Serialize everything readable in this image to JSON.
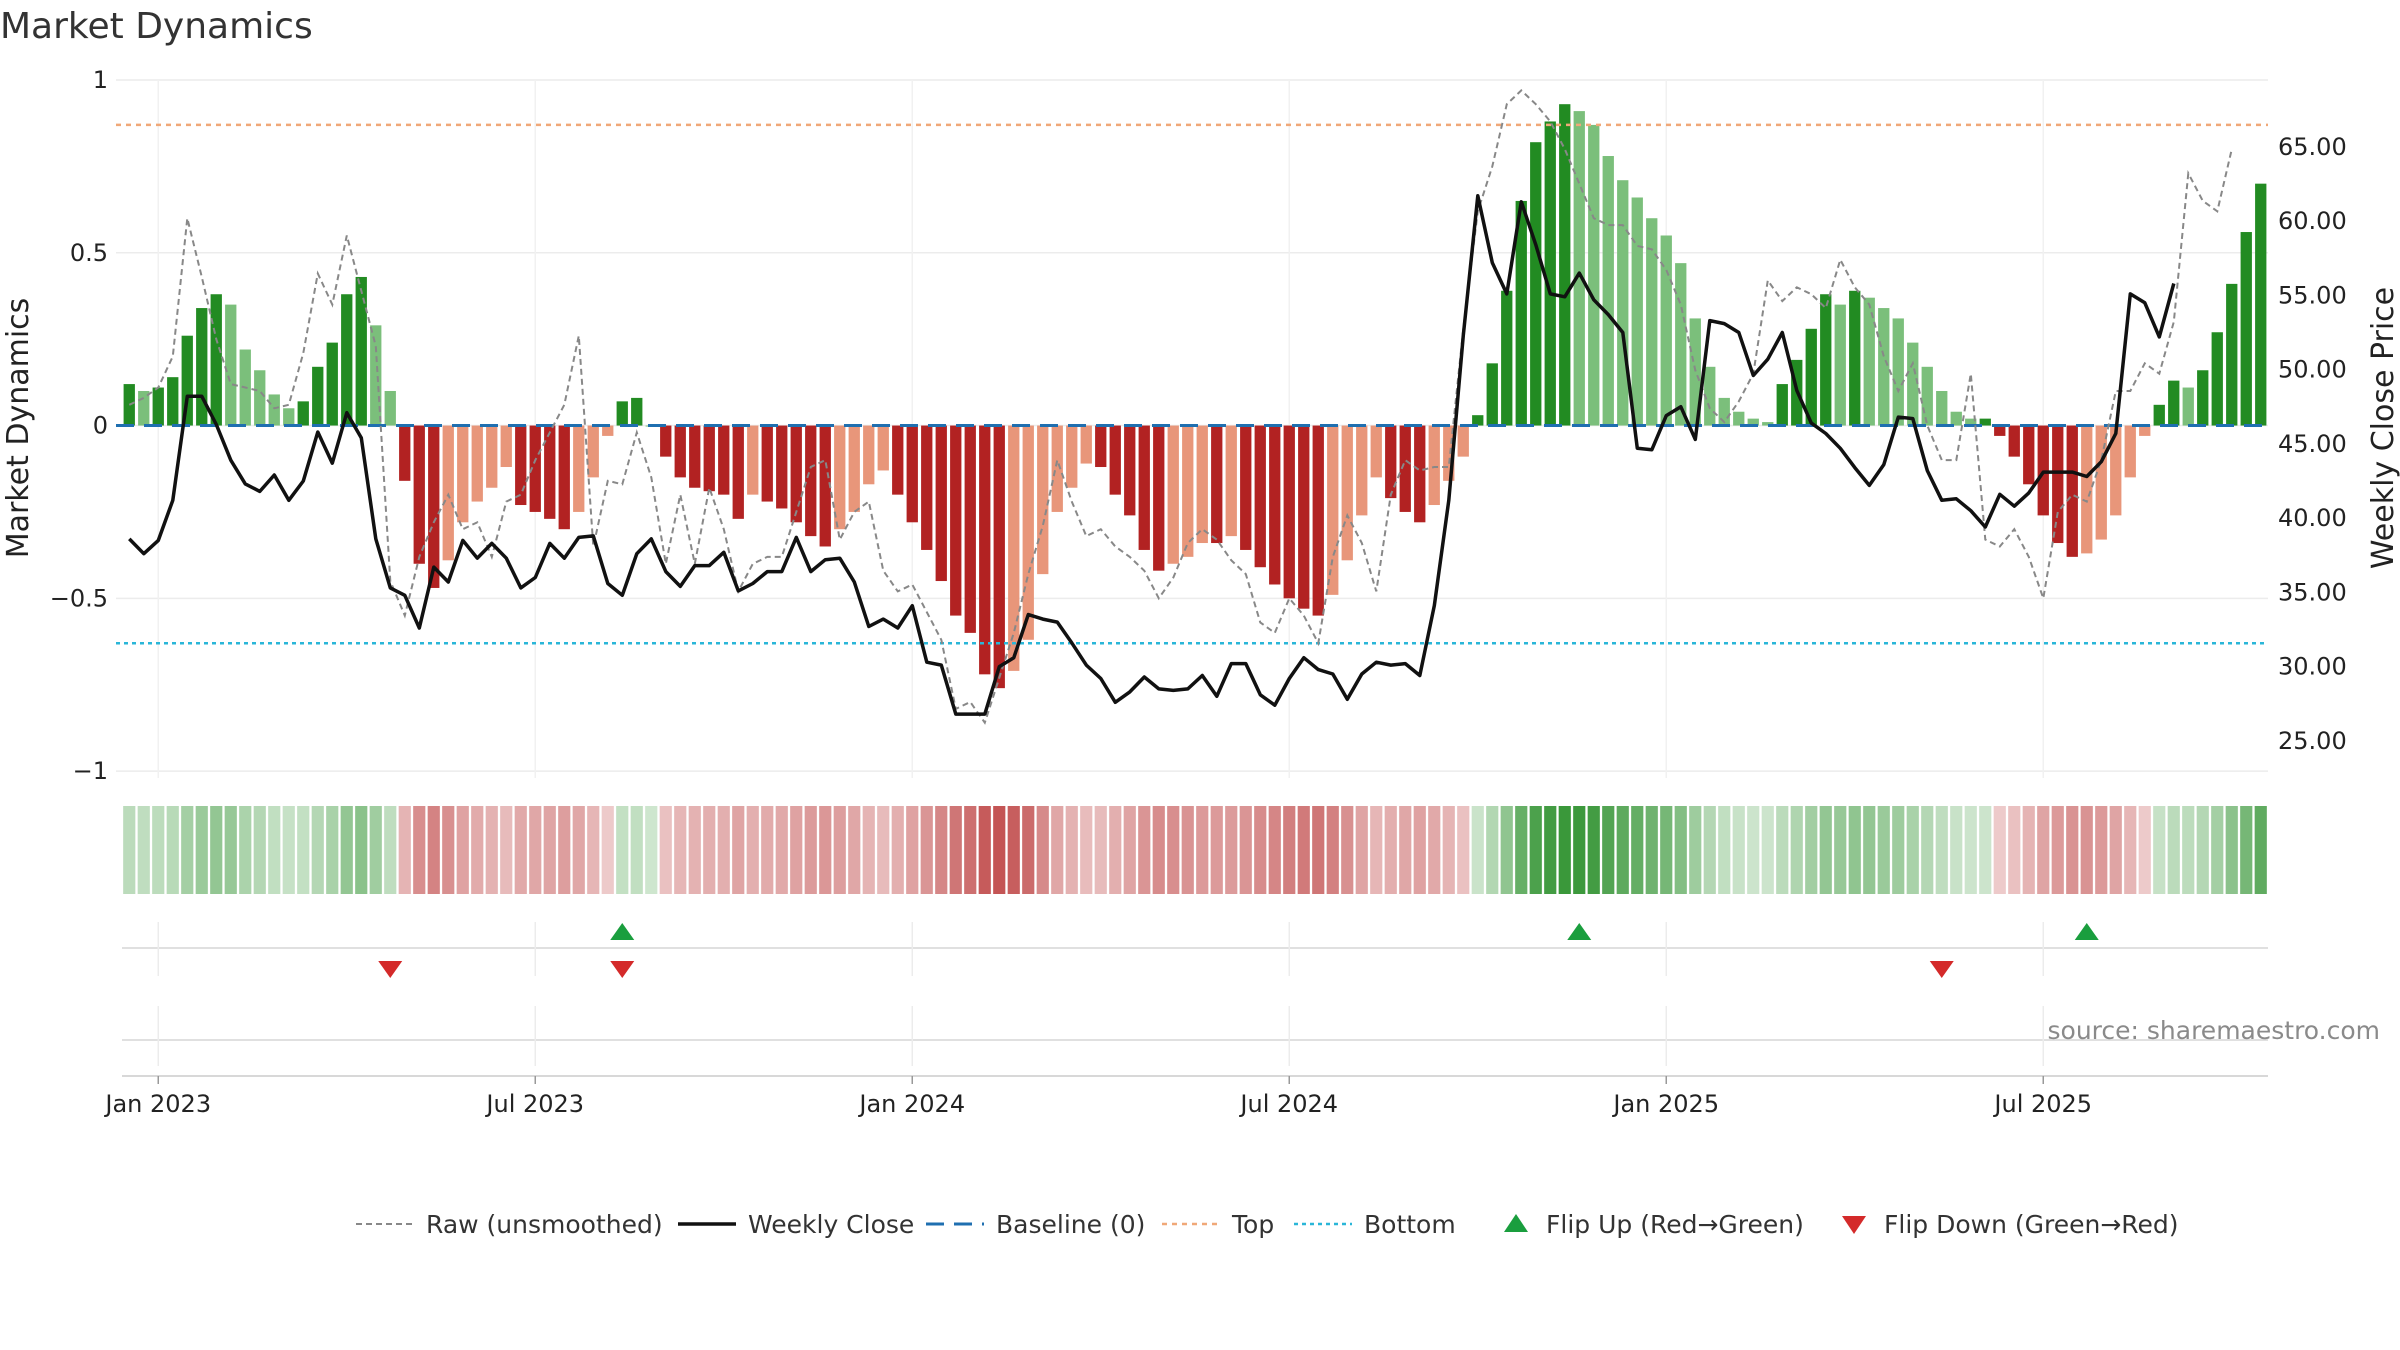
{
  "chart_data": {
    "type": "bar",
    "title": "Market Dynamics",
    "ylabel_left": "Market Dynamics",
    "ylabel_right": "Weekly Close Price",
    "source": "source: sharemaestro.com",
    "ylim_left": [
      -1.02,
      1.0
    ],
    "ylim_right": [
      22.5,
      69.5
    ],
    "left_ticks": [
      {
        "v": 1,
        "label": "1"
      },
      {
        "v": 0.5,
        "label": "0.5"
      },
      {
        "v": 0,
        "label": "0"
      },
      {
        "v": -0.5,
        "label": "−0.5"
      },
      {
        "v": -1,
        "label": "−1"
      }
    ],
    "right_ticks": [
      {
        "v": 65,
        "label": "65.00"
      },
      {
        "v": 60,
        "label": "60.00"
      },
      {
        "v": 55,
        "label": "55.00"
      },
      {
        "v": 50,
        "label": "50.00"
      },
      {
        "v": 45,
        "label": "45.00"
      },
      {
        "v": 40,
        "label": "40.00"
      },
      {
        "v": 35,
        "label": "35.00"
      },
      {
        "v": 30,
        "label": "30.00"
      },
      {
        "v": 25,
        "label": "25.00"
      }
    ],
    "x_ticks": [
      {
        "week": 2,
        "label": "Jan 2023"
      },
      {
        "week": 28,
        "label": "Jul 2023"
      },
      {
        "week": 54,
        "label": "Jan 2024"
      },
      {
        "week": 80,
        "label": "Jul 2024"
      },
      {
        "week": 106,
        "label": "Jan 2025"
      },
      {
        "week": 132,
        "label": "Jul 2025"
      }
    ],
    "top_level": 0.87,
    "bottom_level": -0.63,
    "baseline": 0,
    "colors": {
      "strong_green": "#228b22",
      "light_green": "#7bbf7b",
      "strong_red": "#b22222",
      "light_red": "#e8967a",
      "top_line": "#f0a878",
      "bottom_line": "#2ab6d8",
      "baseline": "#1f6fb0",
      "raw": "#888888",
      "close": "#111111",
      "flip_up": "#1a9e3e",
      "flip_down": "#d42a2a"
    },
    "market_dynamics": [
      0.12,
      0.1,
      0.11,
      0.14,
      0.26,
      0.34,
      0.38,
      0.35,
      0.22,
      0.16,
      0.09,
      0.05,
      0.07,
      0.17,
      0.24,
      0.38,
      0.43,
      0.29,
      0.1,
      -0.16,
      -0.4,
      -0.47,
      -0.39,
      -0.28,
      -0.22,
      -0.18,
      -0.12,
      -0.23,
      -0.25,
      -0.27,
      -0.3,
      -0.25,
      -0.15,
      -0.03,
      0.07,
      0.08,
      0,
      -0.09,
      -0.15,
      -0.18,
      -0.19,
      -0.2,
      -0.27,
      -0.2,
      -0.22,
      -0.24,
      -0.28,
      -0.32,
      -0.35,
      -0.3,
      -0.25,
      -0.17,
      -0.13,
      -0.2,
      -0.28,
      -0.36,
      -0.45,
      -0.55,
      -0.6,
      -0.72,
      -0.76,
      -0.71,
      -0.62,
      -0.43,
      -0.25,
      -0.18,
      -0.11,
      -0.12,
      -0.2,
      -0.26,
      -0.36,
      -0.42,
      -0.4,
      -0.38,
      -0.34,
      -0.34,
      -0.32,
      -0.36,
      -0.41,
      -0.46,
      -0.5,
      -0.53,
      -0.55,
      -0.49,
      -0.39,
      -0.26,
      -0.15,
      -0.21,
      -0.25,
      -0.28,
      -0.23,
      -0.16,
      -0.09,
      0.03,
      0.18,
      0.39,
      0.65,
      0.82,
      0.88,
      0.93,
      0.91,
      0.87,
      0.78,
      0.71,
      0.66,
      0.6,
      0.55,
      0.47,
      0.31,
      0.17,
      0.08,
      0.04,
      0.02,
      0.01,
      0.12,
      0.19,
      0.28,
      0.38,
      0.35,
      0.39,
      0.37,
      0.34,
      0.31,
      0.24,
      0.17,
      0.1,
      0.04,
      0.02,
      0.02,
      -0.03,
      -0.09,
      -0.17,
      -0.26,
      -0.34,
      -0.38,
      -0.37,
      -0.33,
      -0.26,
      -0.15,
      -0.03,
      0.06,
      0.13,
      0.11,
      0.16,
      0.27,
      0.41,
      0.56,
      0.7
    ],
    "raw_unsmoothed": [
      0.06,
      0.08,
      0.11,
      0.2,
      0.6,
      0.43,
      0.25,
      0.12,
      0.11,
      0.1,
      0.05,
      0.06,
      0.21,
      0.44,
      0.35,
      0.55,
      0.39,
      0.23,
      -0.45,
      -0.55,
      -0.38,
      -0.28,
      -0.2,
      -0.3,
      -0.28,
      -0.38,
      -0.22,
      -0.2,
      -0.1,
      -0.02,
      0.06,
      0.26,
      -0.35,
      -0.16,
      -0.17,
      -0.02,
      -0.15,
      -0.4,
      -0.2,
      -0.4,
      -0.18,
      -0.3,
      -0.48,
      -0.4,
      -0.38,
      -0.38,
      -0.25,
      -0.12,
      -0.1,
      -0.33,
      -0.25,
      -0.22,
      -0.42,
      -0.48,
      -0.46,
      -0.54,
      -0.62,
      -0.82,
      -0.8,
      -0.86,
      -0.73,
      -0.6,
      -0.43,
      -0.29,
      -0.1,
      -0.22,
      -0.32,
      -0.3,
      -0.35,
      -0.38,
      -0.42,
      -0.5,
      -0.44,
      -0.34,
      -0.3,
      -0.33,
      -0.39,
      -0.43,
      -0.57,
      -0.6,
      -0.5,
      -0.55,
      -0.63,
      -0.38,
      -0.26,
      -0.34,
      -0.48,
      -0.2,
      -0.1,
      -0.13,
      -0.12,
      -0.12,
      0.28,
      0.62,
      0.75,
      0.93,
      0.97,
      0.93,
      0.88,
      0.8,
      0.7,
      0.6,
      0.58,
      0.58,
      0.52,
      0.51,
      0.45,
      0.35,
      0.16,
      0.05,
      0.01,
      0.07,
      0.15,
      0.42,
      0.36,
      0.4,
      0.38,
      0.34,
      0.48,
      0.4,
      0.35,
      0.2,
      0.1,
      0.18,
      0.0,
      -0.1,
      -0.1,
      0.15,
      -0.33,
      -0.35,
      -0.3,
      -0.38,
      -0.5,
      -0.25,
      -0.2,
      -0.22,
      -0.1,
      0.1,
      0.1,
      0.18,
      0.15,
      0.3,
      0.73,
      0.65,
      0.62,
      0.8
    ],
    "weekly_close": [
      38.6,
      37.6,
      38.5,
      41.2,
      48.2,
      48.2,
      46.3,
      43.9,
      42.3,
      41.8,
      42.9,
      41.2,
      42.5,
      45.8,
      43.7,
      47.1,
      45.4,
      38.6,
      35.3,
      34.8,
      32.6,
      36.7,
      35.7,
      38.5,
      37.3,
      38.3,
      37.3,
      35.3,
      36,
      38.3,
      37.3,
      38.7,
      38.8,
      35.6,
      34.8,
      37.6,
      38.6,
      36.4,
      35.4,
      36.8,
      36.8,
      37.7,
      35.1,
      35.6,
      36.4,
      36.4,
      38.7,
      36.4,
      37.2,
      37.3,
      35.7,
      32.7,
      33.2,
      32.6,
      34.1,
      30.3,
      30.1,
      26.8,
      26.8,
      26.8,
      30,
      30.6,
      33.5,
      33.2,
      33,
      31.6,
      30.1,
      29.2,
      27.6,
      28.3,
      29.3,
      28.5,
      28.4,
      28.5,
      29.4,
      28,
      30.2,
      30.2,
      28.1,
      27.4,
      29.2,
      30.6,
      29.8,
      29.5,
      27.8,
      29.5,
      30.3,
      30.1,
      30.2,
      29.4,
      34.1,
      41.2,
      52.3,
      61.7,
      57.2,
      55.1,
      61.3,
      58.4,
      55.1,
      54.9,
      56.5,
      54.7,
      53.7,
      52.5,
      44.7,
      44.6,
      46.9,
      47.5,
      45.3,
      53.3,
      53.1,
      52.5,
      49.6,
      50.7,
      52.5,
      48.6,
      46.4,
      45.7,
      44.7,
      43.4,
      42.2,
      43.6,
      46.8,
      46.7,
      43.2,
      41.2,
      41.3,
      40.5,
      39.4,
      41.6,
      40.8,
      41.7,
      43.1,
      43.1,
      43.1,
      42.8,
      43.8,
      45.7,
      55.1,
      54.5,
      52.2,
      55.8
    ],
    "bottom_panel": {
      "flip_up_weeks": [
        34,
        100,
        135
      ],
      "flip_down_weeks": [
        18,
        34,
        125
      ]
    },
    "legend": [
      {
        "kind": "dashed-gray",
        "label": "Raw (unsmoothed)"
      },
      {
        "kind": "solid-black",
        "label": "Weekly Close"
      },
      {
        "kind": "dashed-blue",
        "label": "Baseline (0)"
      },
      {
        "kind": "dotted-orange",
        "label": "Top"
      },
      {
        "kind": "dotted-cyan",
        "label": "Bottom"
      },
      {
        "kind": "tri-up",
        "label": "Flip Up (Red→Green)"
      },
      {
        "kind": "tri-down",
        "label": "Flip Down (Green→Red)"
      }
    ]
  }
}
